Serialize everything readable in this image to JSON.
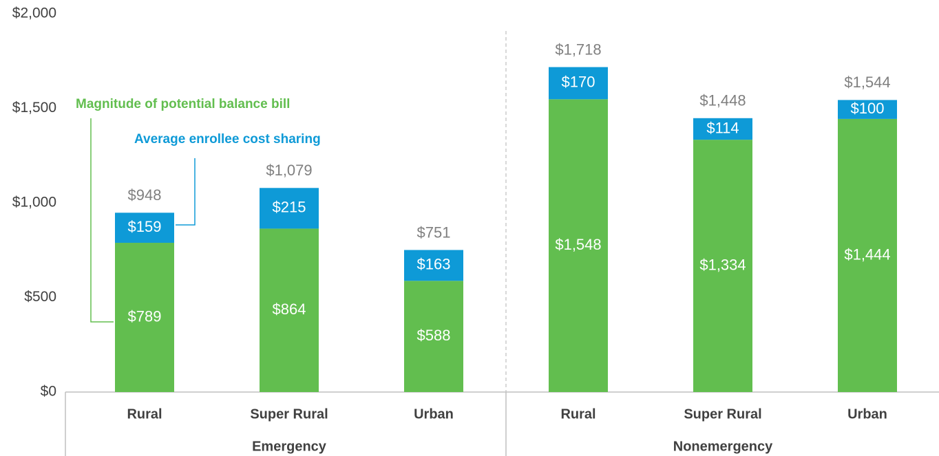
{
  "chart_data": {
    "type": "stacked-bar",
    "categories": [
      "Rural",
      "Super Rural",
      "Urban",
      "Rural",
      "Super Rural",
      "Urban"
    ],
    "groups": [
      "Emergency",
      "Nonemergency"
    ],
    "series": [
      {
        "name": "Magnitude of potential balance bill",
        "color": "#62be4f",
        "values": [
          789,
          864,
          588,
          1548,
          1334,
          1444
        ],
        "value_labels": [
          "$789",
          "$864",
          "$588",
          "$1,548",
          "$1,334",
          "$1,444"
        ]
      },
      {
        "name": "Average enrollee cost sharing",
        "color": "#0e9ad7",
        "values": [
          159,
          215,
          163,
          170,
          114,
          100
        ],
        "value_labels": [
          "$159",
          "$215",
          "$163",
          "$170",
          "$114",
          "$100"
        ]
      }
    ],
    "total_labels": [
      "$948",
      "$1,079",
      "$751",
      "$1,718",
      "$1,448",
      "$1,544"
    ],
    "ylim": [
      0,
      2000
    ],
    "yticks": [
      {
        "value": 0,
        "label": "$0"
      },
      {
        "value": 500,
        "label": "$500"
      },
      {
        "value": 1000,
        "label": "$1,000"
      },
      {
        "value": 1500,
        "label": "$1,500"
      },
      {
        "value": 2000,
        "label": "$2,000"
      }
    ]
  }
}
